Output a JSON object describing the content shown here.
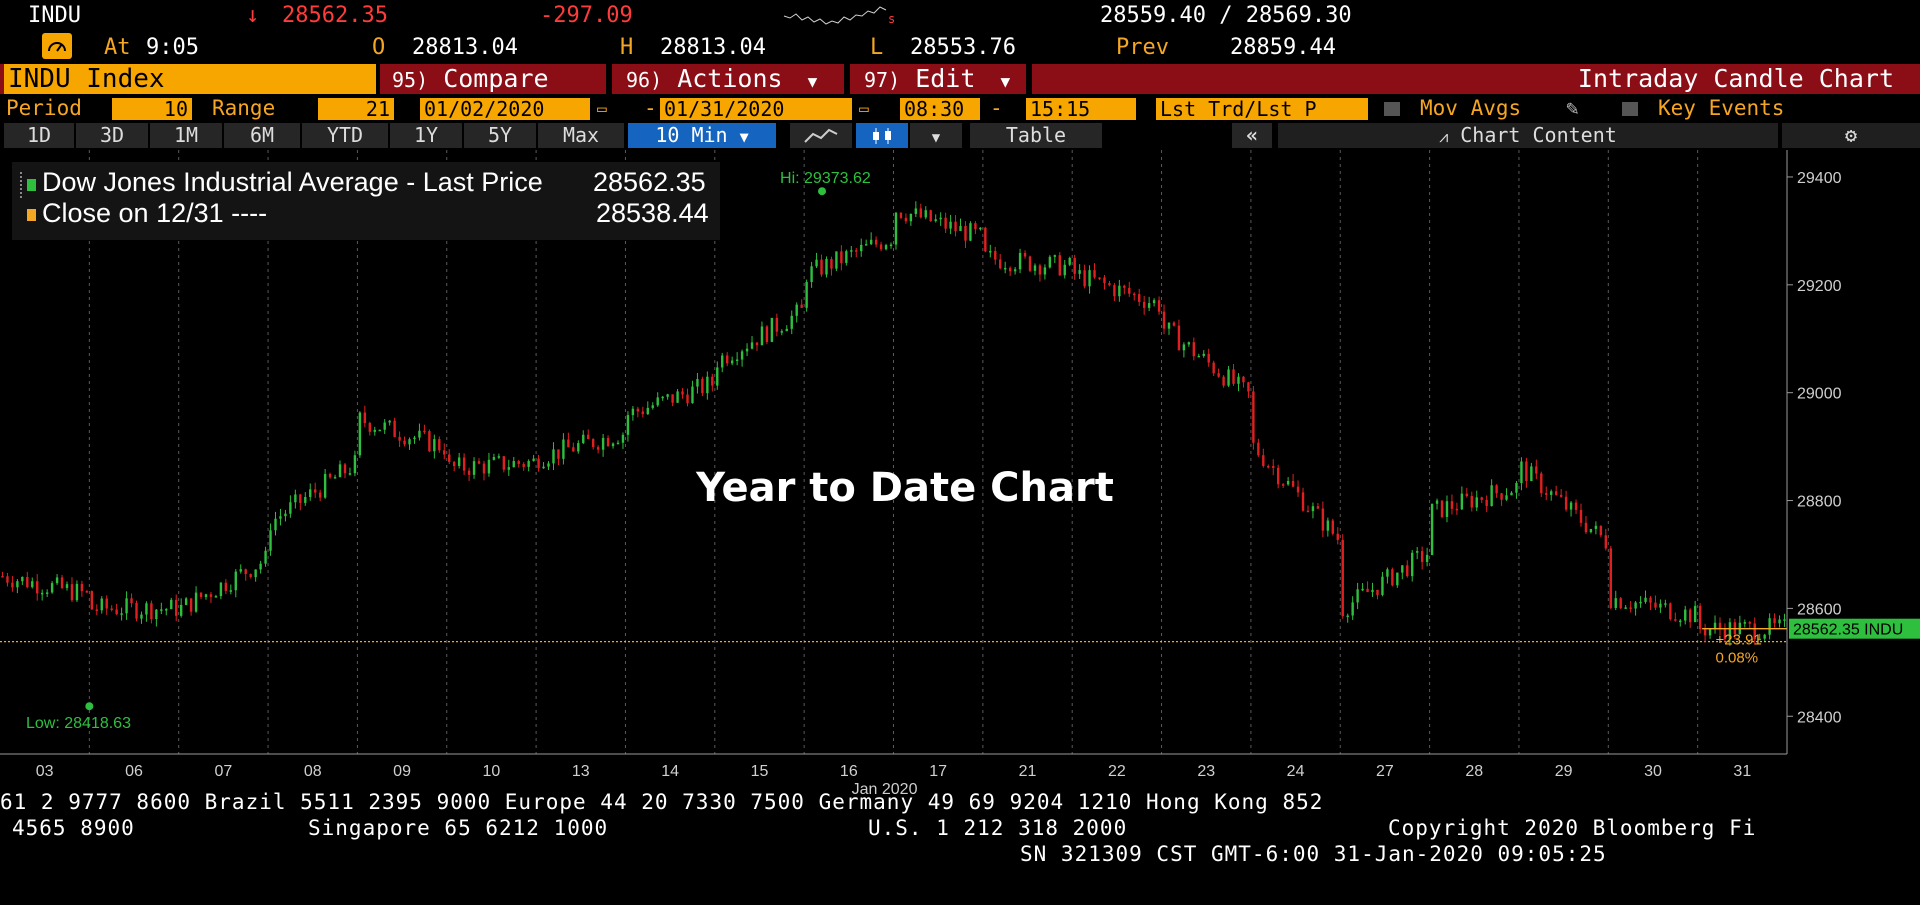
{
  "header": {
    "ticker": "INDU",
    "arrow": "↓",
    "last": "28562.35",
    "change": "-297.09",
    "change_marker": "s",
    "bid_ask": "28559.40 / 28569.30",
    "at_label": "At",
    "time": "9:05",
    "open_label": "O",
    "open": "28813.04",
    "high_label": "H",
    "high": "28813.04",
    "low_label": "L",
    "low": "28553.76",
    "prev_label": "Prev",
    "prev": "28859.44"
  },
  "menu": {
    "security": "INDU Index",
    "compare_num": "95)",
    "compare": "Compare",
    "actions_num": "96)",
    "actions": "Actions",
    "edit_num": "97)",
    "edit": "Edit",
    "chart_title": "Intraday Candle Chart"
  },
  "settings": {
    "period_label": "Period",
    "period_value": "10",
    "range_label": "Range",
    "range_value": "21",
    "start_date": "01/02/2020",
    "dash1": "-",
    "end_date": "01/31/2020",
    "start_time": "08:30",
    "dash2": "-",
    "end_time": "15:15",
    "price_type": "Lst Trd/Lst P",
    "mov_avgs": "Mov Avgs",
    "key_events": "Key Events"
  },
  "toolbar": {
    "ranges": [
      "1D",
      "3D",
      "1M",
      "6M",
      "YTD",
      "1Y",
      "5Y",
      "Max"
    ],
    "interval": "10 Min",
    "table": "Table",
    "collapse": "«",
    "chart_content": "Chart Content"
  },
  "legend": {
    "series1_name": "Dow Jones Industrial Average - Last Price",
    "series1_value": "28562.35",
    "series2_name": "Close on 12/31 ----",
    "series2_value": "28538.44"
  },
  "annotations": {
    "hi": "Hi: 29373.62",
    "low": "Low: 28418.63",
    "overlay": "Year to Date Chart",
    "last_tag": "28562.35 INDU",
    "chg_abs": "+23.91",
    "chg_pct": "0.08%"
  },
  "chart_data": {
    "type": "line",
    "x_month_label": "Jan 2020",
    "x": [
      "03",
      "06",
      "07",
      "08",
      "09",
      "10",
      "13",
      "14",
      "15",
      "16",
      "17",
      "21",
      "22",
      "23",
      "24",
      "27",
      "28",
      "29",
      "30",
      "31"
    ],
    "series": [
      {
        "name": "Dow Jones Industrial Average - Last Price",
        "values": [
          28660,
          28600,
          28600,
          28760,
          28950,
          28860,
          28880,
          28960,
          29060,
          29220,
          29340,
          29250,
          29220,
          29120,
          28900,
          28600,
          28780,
          28860,
          28620,
          28562.35
        ]
      }
    ],
    "reference_close": 28538.44,
    "hi": 29373.62,
    "low": 28418.63,
    "y_ticks": [
      28400,
      28600,
      28800,
      29000,
      29200,
      29400
    ],
    "ylim": [
      28330,
      29450
    ],
    "grid": "vertical dotted",
    "colors": {
      "up": "#2fbf3f",
      "down": "#e02020",
      "close_line": "#f5a623"
    }
  },
  "footer": {
    "line1": "61 2 9777 8600 Brazil 5511 2395 9000 Europe 44 20 7330 7500 Germany 49 69 9204 1210 Hong Kong 852",
    "line2a": "4565 8900",
    "line2b": "Singapore 65 6212 1000",
    "line2c": "U.S. 1 212 318 2000",
    "line2d": "Copyright 2020 Bloomberg Fi",
    "line3": "SN 321309 CST  GMT-6:00 31-Jan-2020 09:05:25"
  }
}
